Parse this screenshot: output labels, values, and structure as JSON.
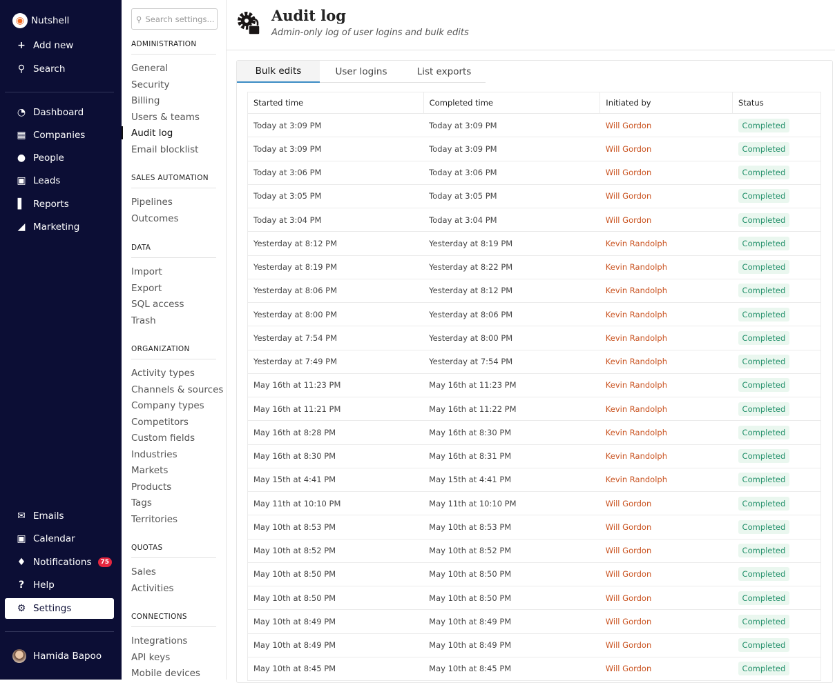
{
  "sidebar": {
    "top": [
      {
        "label": "Nutshell",
        "icon": "acorn-logo-icon"
      },
      {
        "label": "Add new",
        "icon": "plus-icon"
      },
      {
        "label": "Search",
        "icon": "search-icon"
      }
    ],
    "main": [
      {
        "label": "Dashboard",
        "icon": "gauge-icon"
      },
      {
        "label": "Companies",
        "icon": "building-icon"
      },
      {
        "label": "People",
        "icon": "person-icon"
      },
      {
        "label": "Leads",
        "icon": "ticket-icon"
      },
      {
        "label": "Reports",
        "icon": "bar-chart-icon"
      },
      {
        "label": "Marketing",
        "icon": "megaphone-icon"
      }
    ],
    "bottom": [
      {
        "label": "Emails",
        "icon": "envelope-icon"
      },
      {
        "label": "Calendar",
        "icon": "calendar-icon"
      },
      {
        "label": "Notifications",
        "icon": "bell-icon",
        "badge": "75"
      },
      {
        "label": "Help",
        "icon": "question-icon"
      },
      {
        "label": "Settings",
        "icon": "gear-icon",
        "active": true
      }
    ],
    "user": "Hamida Bapoo",
    "badge_color": "#e5263f"
  },
  "settings_nav": {
    "search_placeholder": "Search settings...",
    "sections": [
      {
        "title": "ADMINISTRATION",
        "items": [
          "General",
          "Security",
          "Billing",
          "Users & teams",
          "Audit log",
          "Email blocklist"
        ]
      },
      {
        "title": "SALES AUTOMATION",
        "items": [
          "Pipelines",
          "Outcomes"
        ]
      },
      {
        "title": "DATA",
        "items": [
          "Import",
          "Export",
          "SQL access",
          "Trash"
        ]
      },
      {
        "title": "ORGANIZATION",
        "items": [
          "Activity types",
          "Channels & sources",
          "Company types",
          "Competitors",
          "Custom fields",
          "Industries",
          "Markets",
          "Products",
          "Tags",
          "Territories"
        ]
      },
      {
        "title": "QUOTAS",
        "items": [
          "Sales",
          "Activities"
        ]
      },
      {
        "title": "CONNECTIONS",
        "items": [
          "Integrations",
          "API keys",
          "Mobile devices"
        ]
      }
    ],
    "active": "Audit log"
  },
  "header": {
    "title": "Audit log",
    "subtitle": "Admin-only log of user logins and bulk edits",
    "icon": "gear-lock-icon"
  },
  "tabs": [
    {
      "label": "Bulk edits",
      "active": true
    },
    {
      "label": "User logins"
    },
    {
      "label": "List exports"
    }
  ],
  "table": {
    "columns": [
      "Started time",
      "Completed time",
      "Initiated by",
      "Status"
    ],
    "rows": [
      [
        "Today at 3:09 PM",
        "Today at 3:09 PM",
        "Will Gordon",
        "Completed"
      ],
      [
        "Today at 3:09 PM",
        "Today at 3:09 PM",
        "Will Gordon",
        "Completed"
      ],
      [
        "Today at 3:06 PM",
        "Today at 3:06 PM",
        "Will Gordon",
        "Completed"
      ],
      [
        "Today at 3:05 PM",
        "Today at 3:05 PM",
        "Will Gordon",
        "Completed"
      ],
      [
        "Today at 3:04 PM",
        "Today at 3:04 PM",
        "Will Gordon",
        "Completed"
      ],
      [
        "Yesterday at 8:12 PM",
        "Yesterday at 8:19 PM",
        "Kevin Randolph",
        "Completed"
      ],
      [
        "Yesterday at 8:19 PM",
        "Yesterday at 8:22 PM",
        "Kevin Randolph",
        "Completed"
      ],
      [
        "Yesterday at 8:06 PM",
        "Yesterday at 8:12 PM",
        "Kevin Randolph",
        "Completed"
      ],
      [
        "Yesterday at 8:00 PM",
        "Yesterday at 8:06 PM",
        "Kevin Randolph",
        "Completed"
      ],
      [
        "Yesterday at 7:54 PM",
        "Yesterday at 8:00 PM",
        "Kevin Randolph",
        "Completed"
      ],
      [
        "Yesterday at 7:49 PM",
        "Yesterday at 7:54 PM",
        "Kevin Randolph",
        "Completed"
      ],
      [
        "May 16th at 11:23 PM",
        "May 16th at 11:23 PM",
        "Kevin Randolph",
        "Completed"
      ],
      [
        "May 16th at 11:21 PM",
        "May 16th at 11:22 PM",
        "Kevin Randolph",
        "Completed"
      ],
      [
        "May 16th at 8:28 PM",
        "May 16th at 8:30 PM",
        "Kevin Randolph",
        "Completed"
      ],
      [
        "May 16th at 8:30 PM",
        "May 16th at 8:31 PM",
        "Kevin Randolph",
        "Completed"
      ],
      [
        "May 15th at 4:41 PM",
        "May 15th at 4:41 PM",
        "Kevin Randolph",
        "Completed"
      ],
      [
        "May 11th at 10:10 PM",
        "May 11th at 10:10 PM",
        "Will Gordon",
        "Completed"
      ],
      [
        "May 10th at 8:53 PM",
        "May 10th at 8:53 PM",
        "Will Gordon",
        "Completed"
      ],
      [
        "May 10th at 8:52 PM",
        "May 10th at 8:52 PM",
        "Will Gordon",
        "Completed"
      ],
      [
        "May 10th at 8:50 PM",
        "May 10th at 8:50 PM",
        "Will Gordon",
        "Completed"
      ],
      [
        "May 10th at 8:50 PM",
        "May 10th at 8:50 PM",
        "Will Gordon",
        "Completed"
      ],
      [
        "May 10th at 8:49 PM",
        "May 10th at 8:49 PM",
        "Will Gordon",
        "Completed"
      ],
      [
        "May 10th at 8:49 PM",
        "May 10th at 8:49 PM",
        "Will Gordon",
        "Completed"
      ],
      [
        "May 10th at 8:45 PM",
        "May 10th at 8:45 PM",
        "Will Gordon",
        "Completed"
      ]
    ],
    "user_color": "#c9521f",
    "status_color": "#23906a"
  }
}
